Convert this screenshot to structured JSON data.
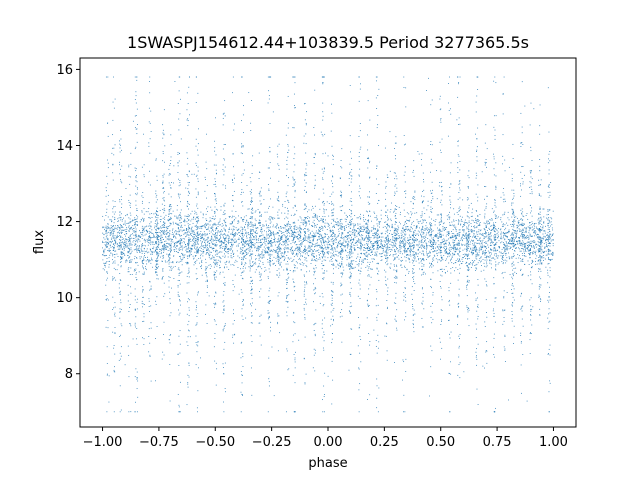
{
  "chart_data": {
    "type": "scatter",
    "title": "1SWASPJ154612.44+103839.5 Period 3277365.5s",
    "xlabel": "phase",
    "ylabel": "flux",
    "xlim": [
      -1.1,
      1.1
    ],
    "ylim": [
      6.6,
      16.3
    ],
    "xticks": [
      -1.0,
      -0.75,
      -0.5,
      -0.25,
      0.0,
      0.25,
      0.5,
      0.75,
      1.0
    ],
    "xtick_labels": [
      "−1.00",
      "−0.75",
      "−0.50",
      "−0.25",
      "0.00",
      "0.25",
      "0.50",
      "0.75",
      "1.00"
    ],
    "yticks": [
      8,
      10,
      12,
      14,
      16
    ],
    "ytick_labels": [
      "8",
      "10",
      "12",
      "14",
      "16"
    ],
    "grid": false,
    "marker_color": "#1f77b4",
    "series": [
      {
        "x_range": [
          -1.0,
          1.0
        ],
        "y_center": 11.5,
        "y_band_halfwidth": 0.45,
        "y_extremes": [
          7.0,
          15.8
        ],
        "columns_x": [
          -0.98,
          -0.95,
          -0.92,
          -0.88,
          -0.85,
          -0.82,
          -0.79,
          -0.76,
          -0.73,
          -0.7,
          -0.66,
          -0.62,
          -0.58,
          -0.54,
          -0.5,
          -0.46,
          -0.42,
          -0.38,
          -0.34,
          -0.3,
          -0.26,
          -0.22,
          -0.18,
          -0.15,
          -0.1,
          -0.06,
          -0.02,
          0.02,
          0.06,
          0.1,
          0.14,
          0.18,
          0.22,
          0.26,
          0.3,
          0.34,
          0.38,
          0.42,
          0.46,
          0.5,
          0.54,
          0.58,
          0.62,
          0.66,
          0.7,
          0.74,
          0.78,
          0.82,
          0.86,
          0.9,
          0.94,
          0.98
        ]
      }
    ]
  }
}
